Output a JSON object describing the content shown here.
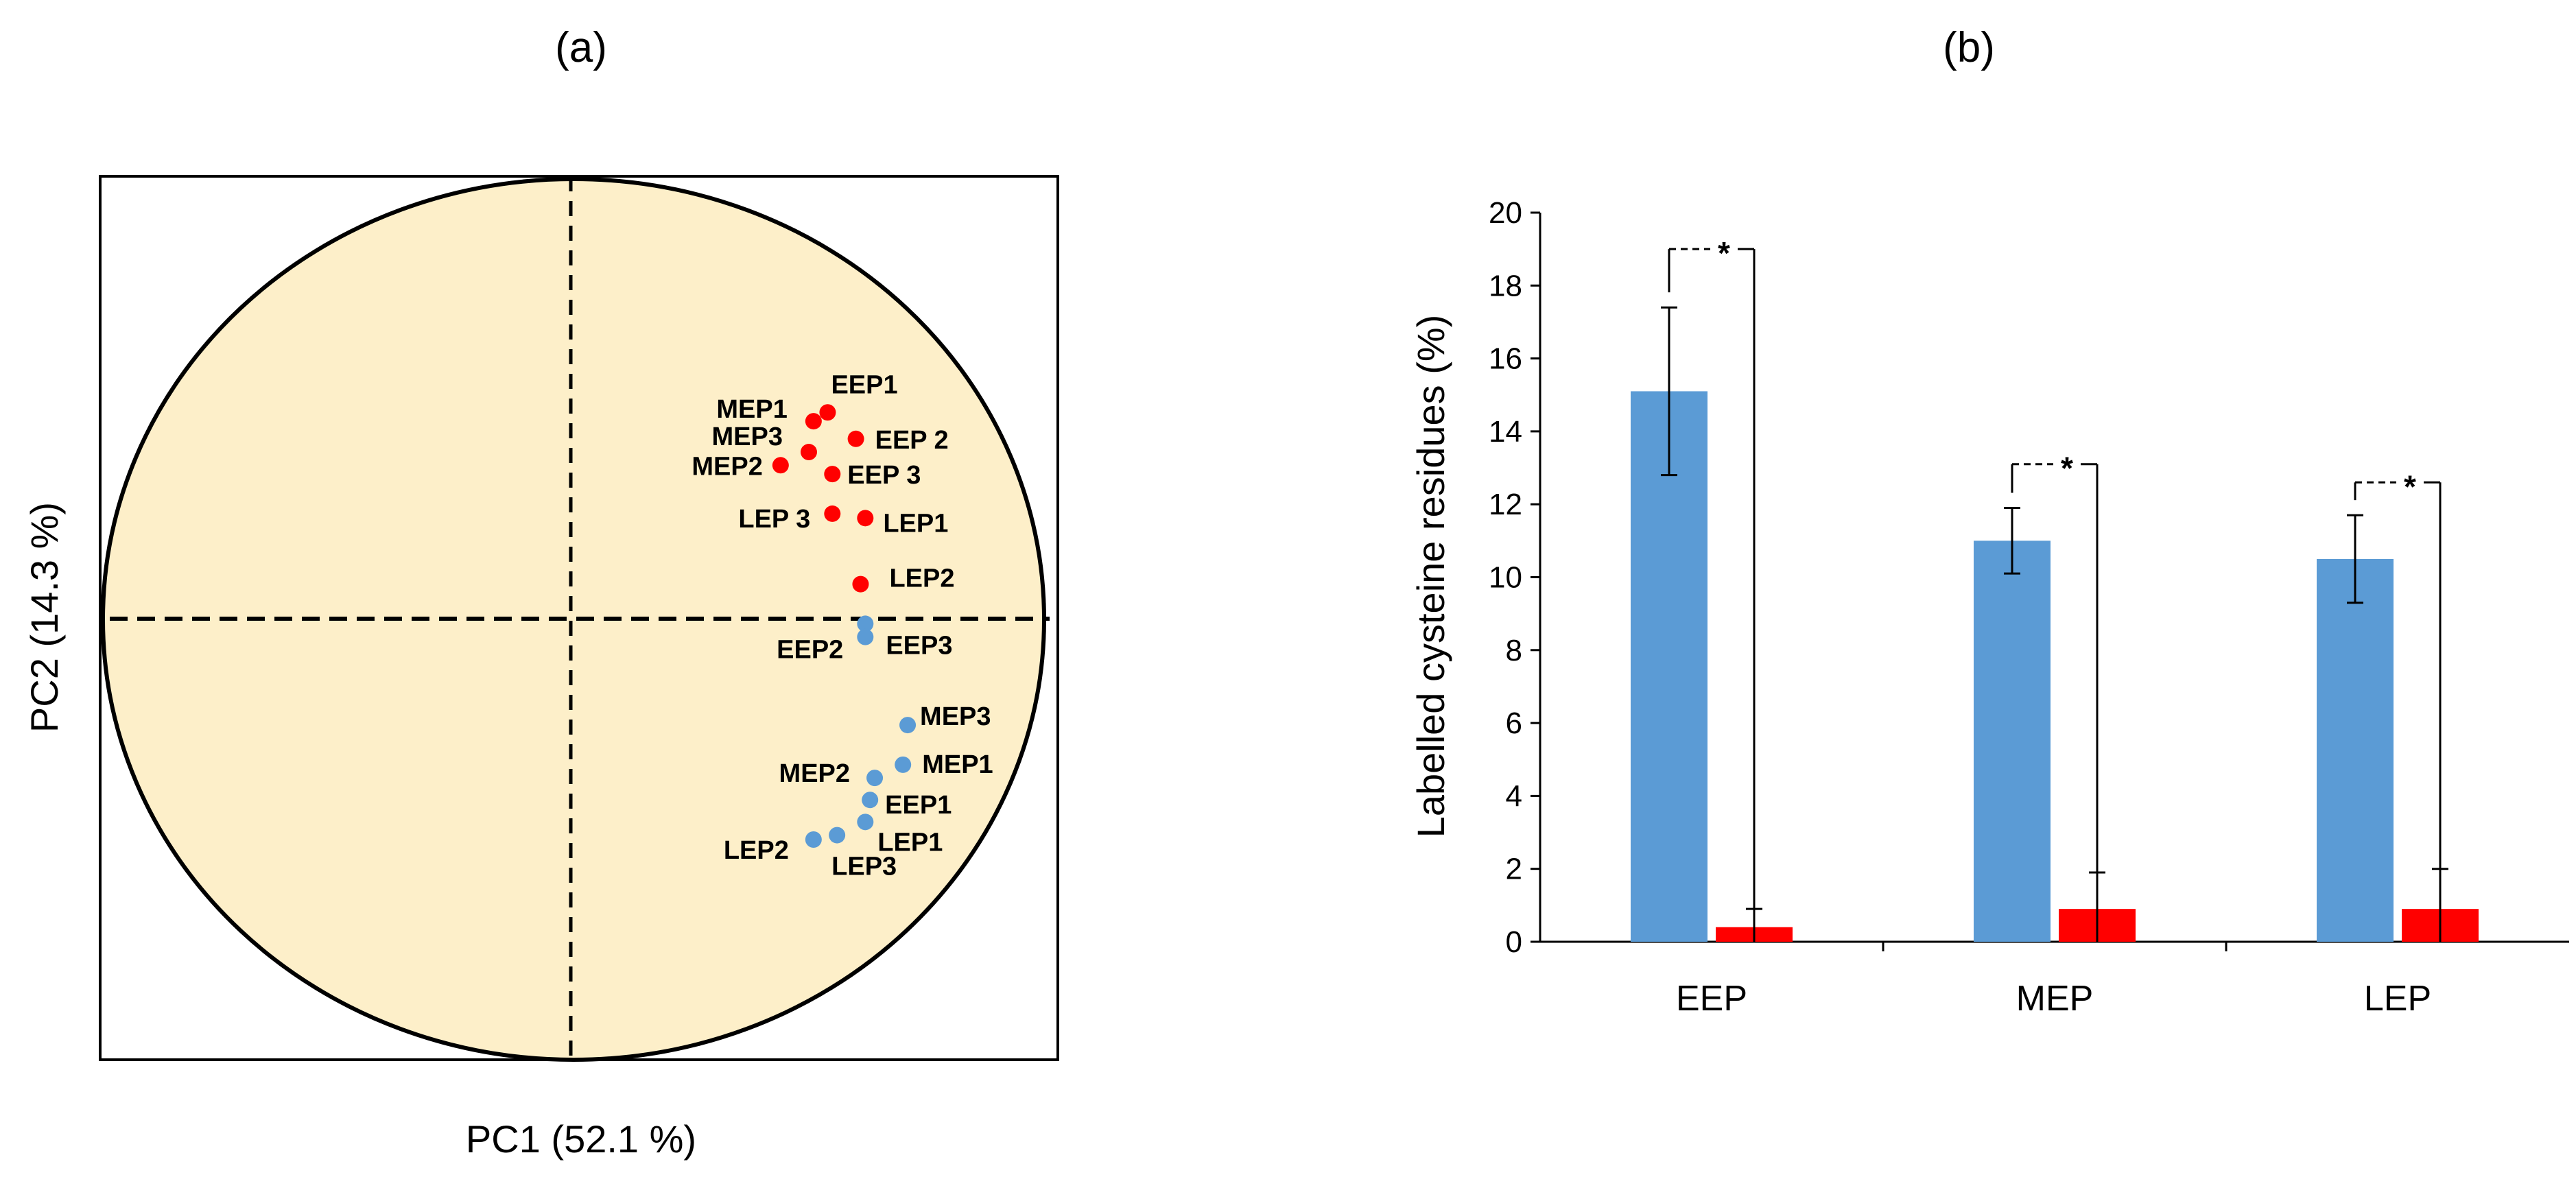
{
  "chart_data": [
    {
      "type": "scatter",
      "panel_label": "(a)",
      "xlabel": "PC1 (52.1 %)",
      "ylabel": "PC2 (14.3 %)",
      "xlim": [
        -1,
        1
      ],
      "ylim": [
        -1,
        1
      ],
      "grid": false,
      "series": [
        {
          "name": "red",
          "color": "#ff0000",
          "points": [
            {
              "label": "EEP1",
              "x": 0.54,
              "y": 0.47
            },
            {
              "label": "MEP1",
              "x": 0.51,
              "y": 0.45
            },
            {
              "label": "EEP 2",
              "x": 0.6,
              "y": 0.41
            },
            {
              "label": "MEP3",
              "x": 0.5,
              "y": 0.38
            },
            {
              "label": "MEP2",
              "x": 0.44,
              "y": 0.35
            },
            {
              "label": "EEP 3",
              "x": 0.55,
              "y": 0.33
            },
            {
              "label": "LEP 3",
              "x": 0.55,
              "y": 0.24
            },
            {
              "label": "LEP1",
              "x": 0.62,
              "y": 0.23
            },
            {
              "label": "LEP2",
              "x": 0.61,
              "y": 0.08
            }
          ]
        },
        {
          "name": "blue",
          "color": "#5b9bd5",
          "points": [
            {
              "label": "EEP2",
              "x": 0.62,
              "y": -0.01
            },
            {
              "label": "EEP3",
              "x": 0.62,
              "y": -0.04
            },
            {
              "label": "MEP3",
              "x": 0.71,
              "y": -0.24
            },
            {
              "label": "MEP1",
              "x": 0.7,
              "y": -0.33
            },
            {
              "label": "MEP2",
              "x": 0.64,
              "y": -0.36
            },
            {
              "label": "EEP1",
              "x": 0.63,
              "y": -0.41
            },
            {
              "label": "LEP1",
              "x": 0.62,
              "y": -0.46
            },
            {
              "label": "LEP3",
              "x": 0.56,
              "y": -0.49
            },
            {
              "label": "LEP2",
              "x": 0.51,
              "y": -0.5
            }
          ]
        }
      ]
    },
    {
      "type": "bar",
      "panel_label": "(b)",
      "title": "",
      "xlabel": "",
      "ylabel": "Labelled cysteine residues (%)",
      "ylim": [
        0,
        20
      ],
      "yticks": [
        0,
        2,
        4,
        6,
        8,
        10,
        12,
        14,
        16,
        18,
        20
      ],
      "grid": false,
      "categories": [
        "EEP",
        "MEP",
        "LEP"
      ],
      "series": [
        {
          "name": "blue",
          "color": "#5b9bd5",
          "values": [
            15.1,
            11.0,
            10.5
          ],
          "errors": [
            2.3,
            0.9,
            1.2
          ]
        },
        {
          "name": "red",
          "color": "#ff0000",
          "values": [
            0.4,
            0.9,
            0.9
          ],
          "errors": [
            0.5,
            1.0,
            1.1
          ]
        }
      ],
      "significance": [
        {
          "category": "EEP",
          "marker": "*",
          "level": 19.0
        },
        {
          "category": "MEP",
          "marker": "*",
          "level": 13.1
        },
        {
          "category": "LEP",
          "marker": "*",
          "level": 12.6
        }
      ]
    }
  ]
}
